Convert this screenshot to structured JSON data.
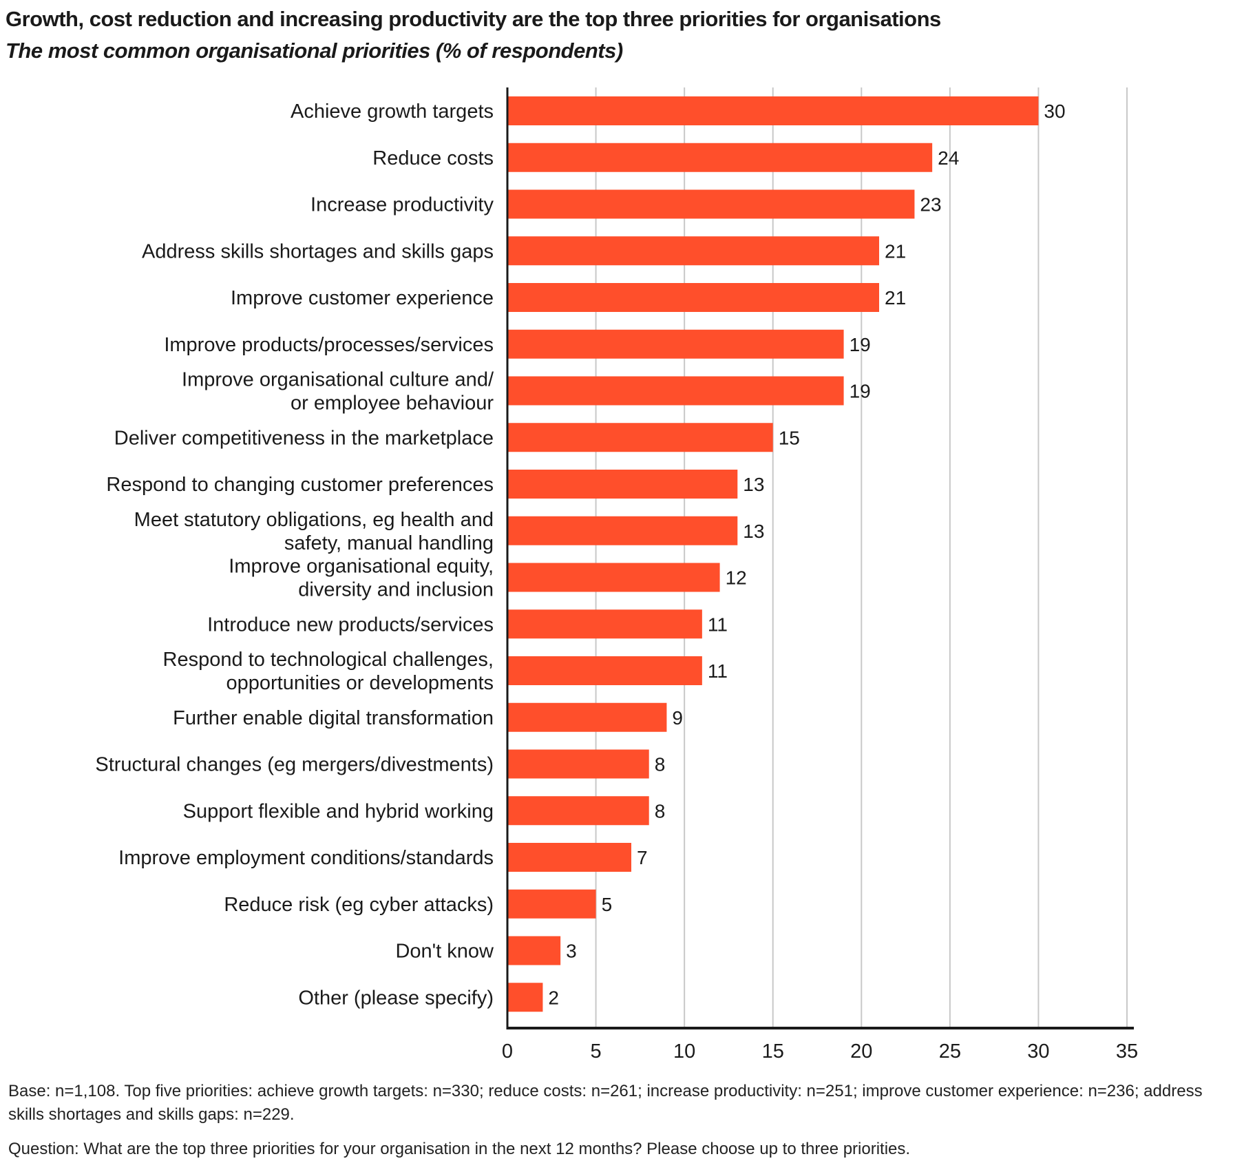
{
  "chart_data": {
    "type": "bar",
    "orientation": "horizontal",
    "title": "Growth, cost reduction and increasing productivity are the top three priorities for organisations",
    "subtitle": "The most common organisational priorities (% of respondents)",
    "categories": [
      [
        "Achieve growth targets"
      ],
      [
        "Reduce costs"
      ],
      [
        "Increase productivity"
      ],
      [
        "Address skills shortages and skills gaps"
      ],
      [
        "Improve customer experience"
      ],
      [
        "Improve products/processes/services"
      ],
      [
        "Improve organisational culture and/",
        "or employee behaviour"
      ],
      [
        "Deliver competitiveness in the marketplace"
      ],
      [
        "Respond to changing customer preferences"
      ],
      [
        "Meet statutory obligations, eg health and",
        "safety, manual handling"
      ],
      [
        "Improve organisational equity,",
        "diversity and inclusion"
      ],
      [
        "Introduce new products/services"
      ],
      [
        "Respond to technological challenges,",
        "opportunities or developments"
      ],
      [
        "Further enable digital transformation"
      ],
      [
        "Structural changes (eg mergers/divestments)"
      ],
      [
        "Support flexible and hybrid working"
      ],
      [
        "Improve employment conditions/standards"
      ],
      [
        "Reduce risk (eg cyber attacks)"
      ],
      [
        "Don't know"
      ],
      [
        "Other (please specify)"
      ]
    ],
    "values": [
      30,
      24,
      23,
      21,
      21,
      19,
      19,
      15,
      13,
      13,
      12,
      11,
      11,
      9,
      8,
      8,
      7,
      5,
      3,
      2
    ],
    "xlim": [
      0,
      35
    ],
    "xticks": [
      0,
      5,
      10,
      15,
      20,
      25,
      30,
      35
    ],
    "grid": true,
    "bar_color": "#FF4F2B",
    "xlabel": "",
    "ylabel": ""
  },
  "notes": {
    "base": "Base: n=1,108. Top five priorities: achieve growth targets: n=330; reduce costs: n=261; increase productivity: n=251; improve customer experience: n=236; address skills shortages and skills gaps: n=229.",
    "question": "Question: What are the top three priorities for your organisation in the next 12 months? Please choose up to three priorities."
  }
}
